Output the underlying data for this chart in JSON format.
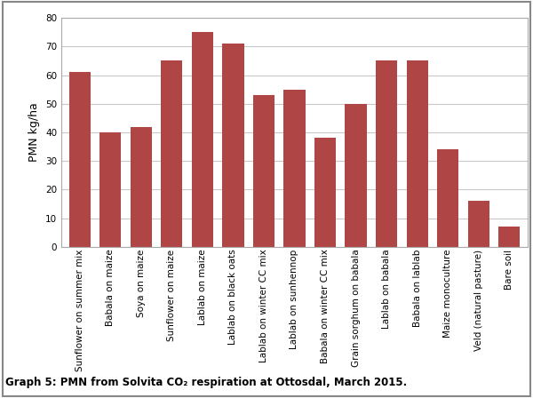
{
  "categories": [
    "Sunflower on summer mix",
    "Babala on maize",
    "Soya on maize",
    "Sunflower on maize",
    "Lablab on maize",
    "Lablab on black oats",
    "Lablab on winter CC mix",
    "Lablab on sunhennop",
    "Babala on winter CC mix",
    "Grain sorghum on babala",
    "Lablab on babala",
    "Babala on lablab",
    "Maize monoculture",
    "Veld (natural pasture)",
    "Bare soil"
  ],
  "values": [
    61,
    40,
    42,
    65,
    75,
    71,
    53,
    55,
    38,
    50,
    65,
    65,
    34,
    16,
    7
  ],
  "bar_color": "#b04545",
  "ylabel": "PMN kg/ha",
  "ylim": [
    0,
    80
  ],
  "yticks": [
    0,
    10,
    20,
    30,
    40,
    50,
    60,
    70,
    80
  ],
  "caption": "Graph 5: PMN from Solvita CO₂ respiration at Ottosdal, March 2015.",
  "background_color": "#ffffff",
  "grid_color": "#c8c8c8",
  "tick_fontsize": 7.5,
  "ylabel_fontsize": 9,
  "caption_fontsize": 8.5,
  "outer_border_color": "#aaaaaa"
}
